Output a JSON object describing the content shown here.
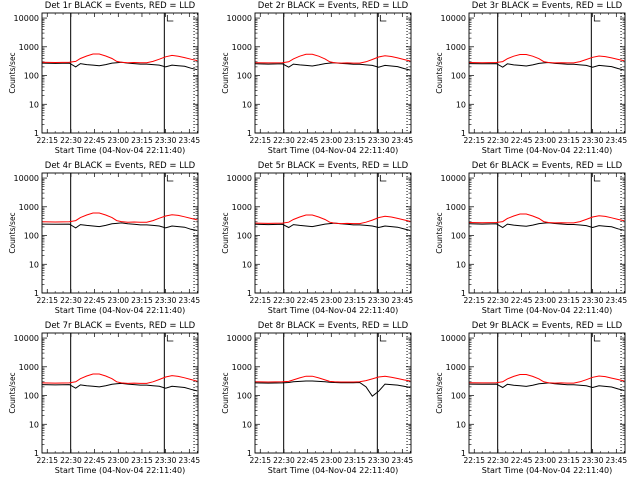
{
  "colors": {
    "events": "#000000",
    "lld": "#ff0000",
    "axis": "#000000",
    "background": "#ffffff"
  },
  "chart_data": [
    {
      "type": "line",
      "title": "Det 1r BLACK = Events, RED = LLD",
      "xlabel": "Start Time (04-Nov-04 22:11:40)",
      "ylabel": "Counts/sec",
      "log_y": true,
      "ylim": [
        1,
        15000
      ],
      "xlim": [
        "22:11:40",
        "23:50:30"
      ],
      "x_ticks": [
        "22:15",
        "22:30",
        "22:45",
        "23:00",
        "23:15",
        "23:30",
        "23:45"
      ],
      "y_ticks": [
        "1",
        "10",
        "100",
        "1000",
        "10000"
      ],
      "vertical_markers": {
        "solid": [
          "22:29:50",
          "23:29:10"
        ],
        "dotted": [
          "23:48:00"
        ]
      },
      "x": [
        "22:11:40",
        "22:20",
        "22:29",
        "22:33",
        "22:36",
        "22:40",
        "22:44",
        "22:48",
        "22:52",
        "22:56",
        "22:59",
        "23:02",
        "23:06",
        "23:10",
        "23:14",
        "23:18",
        "23:22",
        "23:26",
        "23:30",
        "23:34",
        "23:38",
        "23:42",
        "23:46",
        "23:50"
      ],
      "series": [
        {
          "name": "Events",
          "values": [
            270,
            265,
            270,
            200,
            260,
            240,
            230,
            220,
            240,
            270,
            280,
            290,
            270,
            260,
            250,
            250,
            240,
            230,
            200,
            230,
            220,
            210,
            180,
            160
          ]
        },
        {
          "name": "LLD",
          "values": [
            290,
            285,
            290,
            310,
            390,
            480,
            560,
            560,
            480,
            390,
            310,
            290,
            280,
            285,
            280,
            280,
            310,
            370,
            450,
            500,
            470,
            420,
            370,
            330
          ]
        }
      ]
    },
    {
      "type": "line",
      "title": "Det 2r BLACK = Events, RED = LLD",
      "xlabel": "Start Time (04-Nov-04 22:11:40)",
      "ylabel": "Counts/sec",
      "log_y": true,
      "ylim": [
        1,
        15000
      ],
      "xlim": [
        "22:11:40",
        "23:50:30"
      ],
      "x_ticks": [
        "22:15",
        "22:30",
        "22:45",
        "23:00",
        "23:15",
        "23:30",
        "23:45"
      ],
      "y_ticks": [
        "1",
        "10",
        "100",
        "1000",
        "10000"
      ],
      "vertical_markers": {
        "solid": [
          "22:29:50",
          "23:29:10"
        ],
        "dotted": [
          "23:48:00"
        ]
      },
      "x": [
        "22:11:40",
        "22:20",
        "22:29",
        "22:33",
        "22:36",
        "22:40",
        "22:44",
        "22:48",
        "22:52",
        "22:56",
        "22:59",
        "23:02",
        "23:06",
        "23:10",
        "23:14",
        "23:18",
        "23:22",
        "23:26",
        "23:30",
        "23:34",
        "23:38",
        "23:42",
        "23:46",
        "23:50"
      ],
      "series": [
        {
          "name": "Events",
          "values": [
            255,
            250,
            255,
            195,
            250,
            235,
            225,
            215,
            235,
            260,
            270,
            280,
            265,
            255,
            245,
            245,
            235,
            225,
            195,
            225,
            215,
            205,
            175,
            155
          ]
        },
        {
          "name": "LLD",
          "values": [
            280,
            275,
            280,
            300,
            380,
            470,
            550,
            550,
            470,
            380,
            300,
            280,
            270,
            275,
            270,
            270,
            300,
            360,
            440,
            490,
            460,
            410,
            360,
            320
          ]
        }
      ]
    },
    {
      "type": "line",
      "title": "Det 3r BLACK = Events, RED = LLD",
      "xlabel": "Start Time (04-Nov-04 22:11:40)",
      "ylabel": "Counts/sec",
      "log_y": true,
      "ylim": [
        1,
        15000
      ],
      "xlim": [
        "22:11:40",
        "23:50:30"
      ],
      "x_ticks": [
        "22:15",
        "22:30",
        "22:45",
        "23:00",
        "23:15",
        "23:30",
        "23:45"
      ],
      "y_ticks": [
        "1",
        "10",
        "100",
        "1000",
        "10000"
      ],
      "vertical_markers": {
        "solid": [
          "22:29:50",
          "23:29:10"
        ],
        "dotted": [
          "23:48:00"
        ]
      },
      "x": [
        "22:11:40",
        "22:20",
        "22:29",
        "22:33",
        "22:36",
        "22:40",
        "22:44",
        "22:48",
        "22:52",
        "22:56",
        "22:59",
        "23:02",
        "23:06",
        "23:10",
        "23:14",
        "23:18",
        "23:22",
        "23:26",
        "23:30",
        "23:34",
        "23:38",
        "23:42",
        "23:46",
        "23:50"
      ],
      "series": [
        {
          "name": "Events",
          "values": [
            260,
            255,
            260,
            195,
            255,
            235,
            225,
            215,
            235,
            265,
            275,
            285,
            265,
            255,
            245,
            245,
            235,
            225,
            195,
            225,
            215,
            205,
            175,
            155
          ]
        },
        {
          "name": "LLD",
          "values": [
            285,
            280,
            285,
            305,
            385,
            470,
            540,
            540,
            470,
            385,
            305,
            285,
            275,
            280,
            275,
            275,
            305,
            360,
            430,
            480,
            455,
            410,
            365,
            325
          ]
        }
      ]
    },
    {
      "type": "line",
      "title": "Det 4r BLACK = Events, RED = LLD",
      "xlabel": "Start Time (04-Nov-04 22:11:40)",
      "ylabel": "Counts/sec",
      "log_y": true,
      "ylim": [
        1,
        15000
      ],
      "xlim": [
        "22:11:40",
        "23:50:30"
      ],
      "x_ticks": [
        "22:15",
        "22:30",
        "22:45",
        "23:00",
        "23:15",
        "23:30",
        "23:45"
      ],
      "y_ticks": [
        "1",
        "10",
        "100",
        "1000",
        "10000"
      ],
      "vertical_markers": {
        "solid": [
          "22:29:50",
          "23:29:10"
        ],
        "dotted": [
          "23:48:00"
        ]
      },
      "x": [
        "22:11:40",
        "22:20",
        "22:29",
        "22:33",
        "22:36",
        "22:40",
        "22:44",
        "22:48",
        "22:52",
        "22:56",
        "22:59",
        "23:02",
        "23:06",
        "23:10",
        "23:14",
        "23:18",
        "23:22",
        "23:26",
        "23:30",
        "23:34",
        "23:38",
        "23:42",
        "23:46",
        "23:50"
      ],
      "series": [
        {
          "name": "Events",
          "values": [
            250,
            245,
            250,
            185,
            240,
            225,
            215,
            205,
            225,
            255,
            265,
            275,
            255,
            245,
            235,
            235,
            225,
            215,
            185,
            215,
            205,
            195,
            165,
            150
          ]
        },
        {
          "name": "LLD",
          "values": [
            300,
            295,
            300,
            330,
            420,
            520,
            610,
            610,
            520,
            420,
            330,
            305,
            290,
            295,
            290,
            290,
            330,
            400,
            480,
            530,
            500,
            450,
            395,
            350
          ]
        }
      ]
    },
    {
      "type": "line",
      "title": "Det 5r BLACK = Events, RED = LLD",
      "xlabel": "Start Time (04-Nov-04 22:11:40)",
      "ylabel": "Counts/sec",
      "log_y": true,
      "ylim": [
        1,
        15000
      ],
      "xlim": [
        "22:11:40",
        "23:50:30"
      ],
      "x_ticks": [
        "22:15",
        "22:30",
        "22:45",
        "23:00",
        "23:15",
        "23:30",
        "23:45"
      ],
      "y_ticks": [
        "1",
        "10",
        "100",
        "1000",
        "10000"
      ],
      "vertical_markers": {
        "solid": [
          "22:29:50",
          "23:29:10"
        ],
        "dotted": [
          "23:48:00"
        ]
      },
      "x": [
        "22:11:40",
        "22:20",
        "22:29",
        "22:33",
        "22:36",
        "22:40",
        "22:44",
        "22:48",
        "22:52",
        "22:56",
        "22:59",
        "23:02",
        "23:06",
        "23:10",
        "23:14",
        "23:18",
        "23:22",
        "23:26",
        "23:30",
        "23:34",
        "23:38",
        "23:42",
        "23:46",
        "23:50"
      ],
      "series": [
        {
          "name": "Events",
          "values": [
            245,
            240,
            245,
            190,
            240,
            225,
            215,
            205,
            225,
            250,
            260,
            270,
            255,
            245,
            235,
            235,
            225,
            215,
            190,
            215,
            205,
            195,
            170,
            150
          ]
        },
        {
          "name": "LLD",
          "values": [
            270,
            265,
            270,
            290,
            360,
            440,
            520,
            520,
            440,
            360,
            290,
            270,
            260,
            265,
            260,
            260,
            290,
            345,
            420,
            470,
            440,
            395,
            350,
            310
          ]
        }
      ]
    },
    {
      "type": "line",
      "title": "Det 6r BLACK = Events, RED = LLD",
      "xlabel": "Start Time (04-Nov-04 22:11:40)",
      "ylabel": "Counts/sec",
      "log_y": true,
      "ylim": [
        1,
        15000
      ],
      "xlim": [
        "22:11:40",
        "23:50:30"
      ],
      "x_ticks": [
        "22:15",
        "22:30",
        "22:45",
        "23:00",
        "23:15",
        "23:30",
        "23:45"
      ],
      "y_ticks": [
        "1",
        "10",
        "100",
        "1000",
        "10000"
      ],
      "vertical_markers": {
        "solid": [
          "22:29:50",
          "23:29:10"
        ],
        "dotted": [
          "23:48:00"
        ]
      },
      "x": [
        "22:11:40",
        "22:20",
        "22:29",
        "22:33",
        "22:36",
        "22:40",
        "22:44",
        "22:48",
        "22:52",
        "22:56",
        "22:59",
        "23:02",
        "23:06",
        "23:10",
        "23:14",
        "23:18",
        "23:22",
        "23:26",
        "23:30",
        "23:34",
        "23:38",
        "23:42",
        "23:46",
        "23:50"
      ],
      "series": [
        {
          "name": "Events",
          "values": [
            255,
            250,
            255,
            190,
            250,
            230,
            220,
            210,
            230,
            260,
            270,
            280,
            262,
            252,
            242,
            242,
            232,
            222,
            190,
            222,
            212,
            202,
            172,
            152
          ]
        },
        {
          "name": "LLD",
          "values": [
            285,
            280,
            285,
            305,
            390,
            480,
            560,
            560,
            480,
            390,
            305,
            285,
            275,
            280,
            275,
            275,
            305,
            365,
            440,
            490,
            465,
            415,
            365,
            325
          ]
        }
      ]
    },
    {
      "type": "line",
      "title": "Det 7r BLACK = Events, RED = LLD",
      "xlabel": "Start Time (04-Nov-04 22:11:40)",
      "ylabel": "Counts/sec",
      "log_y": true,
      "ylim": [
        1,
        15000
      ],
      "xlim": [
        "22:11:40",
        "23:50:30"
      ],
      "x_ticks": [
        "22:15",
        "22:30",
        "22:45",
        "23:00",
        "23:15",
        "23:30",
        "23:45"
      ],
      "y_ticks": [
        "1",
        "10",
        "100",
        "1000",
        "10000"
      ],
      "vertical_markers": {
        "solid": [
          "22:29:50",
          "23:29:10"
        ],
        "dotted": [
          "23:48:00"
        ]
      },
      "x": [
        "22:11:40",
        "22:20",
        "22:29",
        "22:33",
        "22:36",
        "22:40",
        "22:44",
        "22:48",
        "22:52",
        "22:56",
        "22:59",
        "23:02",
        "23:06",
        "23:10",
        "23:14",
        "23:18",
        "23:22",
        "23:26",
        "23:30",
        "23:34",
        "23:38",
        "23:42",
        "23:46",
        "23:50"
      ],
      "series": [
        {
          "name": "Events",
          "values": [
            240,
            235,
            240,
            180,
            235,
            220,
            210,
            200,
            220,
            245,
            255,
            265,
            250,
            240,
            230,
            230,
            220,
            210,
            180,
            210,
            200,
            190,
            165,
            145
          ]
        },
        {
          "name": "LLD",
          "values": [
            275,
            270,
            275,
            300,
            385,
            480,
            560,
            560,
            480,
            385,
            300,
            275,
            265,
            270,
            265,
            265,
            300,
            360,
            440,
            495,
            465,
            415,
            360,
            315
          ]
        }
      ]
    },
    {
      "type": "line",
      "title": "Det 8r BLACK = Events, RED = LLD",
      "xlabel": "Start Time (04-Nov-04 22:11:40)",
      "ylabel": "Counts/sec",
      "log_y": true,
      "ylim": [
        1,
        15000
      ],
      "xlim": [
        "22:11:40",
        "23:50:30"
      ],
      "x_ticks": [
        "22:15",
        "22:30",
        "22:45",
        "23:00",
        "23:15",
        "23:30",
        "23:45"
      ],
      "y_ticks": [
        "1",
        "10",
        "100",
        "1000",
        "10000"
      ],
      "vertical_markers": {
        "solid": [
          "22:29:50",
          "23:29:10"
        ],
        "dotted": [
          "23:48:00"
        ]
      },
      "x": [
        "22:11:40",
        "22:20",
        "22:29",
        "22:33",
        "22:36",
        "22:40",
        "22:44",
        "22:48",
        "22:52",
        "22:56",
        "22:59",
        "23:02",
        "23:06",
        "23:10",
        "23:14",
        "23:18",
        "23:22",
        "23:26",
        "23:30",
        "23:34",
        "23:38",
        "23:42",
        "23:46",
        "23:50"
      ],
      "series": [
        {
          "name": "Events",
          "values": [
            275,
            270,
            275,
            285,
            300,
            310,
            320,
            320,
            310,
            300,
            290,
            285,
            280,
            280,
            280,
            285,
            200,
            95,
            140,
            250,
            240,
            230,
            210,
            190
          ]
        },
        {
          "name": "LLD",
          "values": [
            300,
            295,
            300,
            310,
            350,
            410,
            470,
            470,
            410,
            350,
            310,
            300,
            295,
            295,
            295,
            300,
            330,
            380,
            440,
            470,
            430,
            390,
            350,
            320
          ]
        }
      ]
    },
    {
      "type": "line",
      "title": "Det 9r BLACK = Events, RED = LLD",
      "xlabel": "Start Time (04-Nov-04 22:11:40)",
      "ylabel": "Counts/sec",
      "log_y": true,
      "ylim": [
        1,
        15000
      ],
      "xlim": [
        "22:11:40",
        "23:50:30"
      ],
      "x_ticks": [
        "22:15",
        "22:30",
        "22:45",
        "23:00",
        "23:15",
        "23:30",
        "23:45"
      ],
      "y_ticks": [
        "1",
        "10",
        "100",
        "1000",
        "10000"
      ],
      "vertical_markers": {
        "solid": [
          "22:29:50",
          "23:29:10"
        ],
        "dotted": [
          "23:48:00"
        ]
      },
      "x": [
        "22:11:40",
        "22:20",
        "22:29",
        "22:33",
        "22:36",
        "22:40",
        "22:44",
        "22:48",
        "22:52",
        "22:56",
        "22:59",
        "23:02",
        "23:06",
        "23:10",
        "23:14",
        "23:18",
        "23:22",
        "23:26",
        "23:30",
        "23:34",
        "23:38",
        "23:42",
        "23:46",
        "23:50"
      ],
      "series": [
        {
          "name": "Events",
          "values": [
            250,
            245,
            250,
            190,
            245,
            228,
            218,
            208,
            228,
            255,
            265,
            275,
            258,
            248,
            238,
            238,
            228,
            218,
            190,
            218,
            208,
            198,
            170,
            150
          ]
        },
        {
          "name": "LLD",
          "values": [
            280,
            275,
            280,
            300,
            380,
            465,
            540,
            540,
            465,
            380,
            300,
            280,
            270,
            275,
            270,
            270,
            300,
            355,
            430,
            480,
            455,
            405,
            360,
            320
          ]
        }
      ]
    }
  ]
}
